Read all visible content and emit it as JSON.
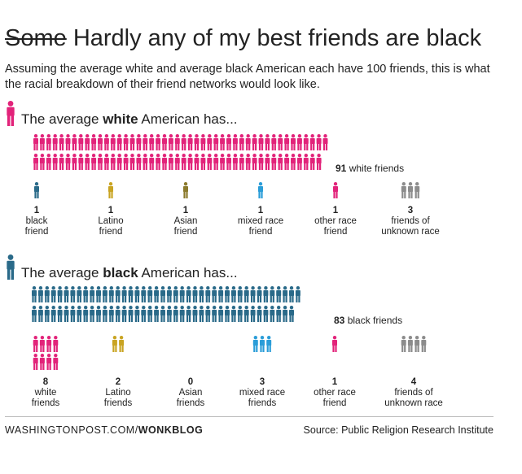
{
  "title": {
    "struck": "Some",
    "rest": " Hardly any of my best friends are black"
  },
  "subtitle": "Assuming the average white and average black American each have 100 friends, this is what the racial breakdown of their friend networks would look like.",
  "colors": {
    "pink": "#e2237a",
    "teal": "#2a6a89",
    "gold": "#c9a422",
    "olive": "#8b7a2c",
    "blue": "#2a9dd8",
    "gray": "#8c8c8c"
  },
  "chart_data": [
    {
      "type": "pictogram",
      "heading_prefix": "The average ",
      "heading_bold": "white",
      "heading_suffix": " American has...",
      "main": {
        "value": 91,
        "number": "91",
        "label": "white friends",
        "color": "#e2237a"
      },
      "categories": [
        {
          "value": 1,
          "number": "1",
          "line1": "black",
          "line2": "friend",
          "color": "#2a6a89"
        },
        {
          "value": 1,
          "number": "1",
          "line1": "Latino",
          "line2": "friend",
          "color": "#c9a422"
        },
        {
          "value": 1,
          "number": "1",
          "line1": "Asian",
          "line2": "friend",
          "color": "#8b7a2c"
        },
        {
          "value": 1,
          "number": "1",
          "line1": "mixed race",
          "line2": "friend",
          "color": "#2a9dd8"
        },
        {
          "value": 1,
          "number": "1",
          "line1": "other race",
          "line2": "friend",
          "color": "#e2237a"
        },
        {
          "value": 3,
          "number": "3",
          "line1": "friends of",
          "line2": "unknown race",
          "color": "#8c8c8c"
        }
      ]
    },
    {
      "type": "pictogram",
      "heading_prefix": "The average ",
      "heading_bold": "black",
      "heading_suffix": " American has...",
      "main": {
        "value": 83,
        "number": "83",
        "label": "black friends",
        "color": "#2a6a89"
      },
      "categories": [
        {
          "value": 8,
          "number": "8",
          "line1": "white",
          "line2": "friends",
          "color": "#e2237a"
        },
        {
          "value": 2,
          "number": "2",
          "line1": "Latino",
          "line2": "friends",
          "color": "#c9a422"
        },
        {
          "value": 0,
          "number": "0",
          "line1": "Asian",
          "line2": "friends",
          "color": "#8b7a2c"
        },
        {
          "value": 3,
          "number": "3",
          "line1": "mixed race",
          "line2": "friends",
          "color": "#2a9dd8"
        },
        {
          "value": 1,
          "number": "1",
          "line1": "other race",
          "line2": "friend",
          "color": "#e2237a"
        },
        {
          "value": 4,
          "number": "4",
          "line1": "friends of",
          "line2": "unknown race",
          "color": "#8c8c8c"
        }
      ]
    }
  ],
  "footer": {
    "site": "WASHINGTONPOST.COM/",
    "section": "WONKBLOG",
    "source": "Source: Public Religion Research Institute"
  }
}
